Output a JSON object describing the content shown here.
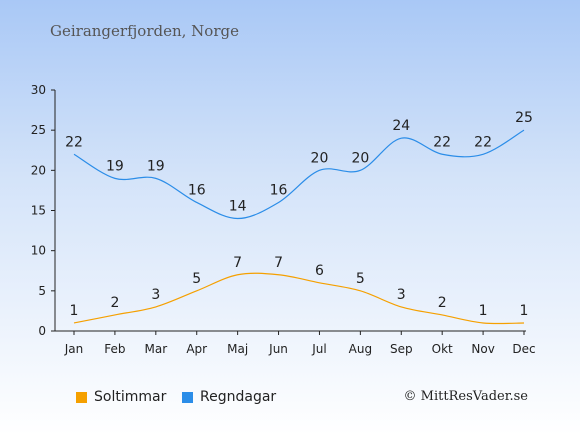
{
  "place_title": "Geirangerfjorden, Norge",
  "credit": "© MittResVader.se",
  "colors": {
    "sun": "#f5a000",
    "rain": "#2b8de8"
  },
  "chart_data": {
    "type": "line",
    "title": "Geirangerfjorden, Norge",
    "categories": [
      "Jan",
      "Feb",
      "Mar",
      "Apr",
      "Maj",
      "Jun",
      "Jul",
      "Aug",
      "Sep",
      "Okt",
      "Nov",
      "Dec"
    ],
    "ylim": [
      0,
      30
    ],
    "yticks": [
      0,
      5,
      10,
      15,
      20,
      25,
      30
    ],
    "legend_position": "bottom-left",
    "grid": false,
    "series": [
      {
        "name": "Soltimmar",
        "color": "#f5a000",
        "values": [
          1,
          2,
          3,
          5,
          7,
          7,
          6,
          5,
          3,
          2,
          1,
          1
        ]
      },
      {
        "name": "Regndagar",
        "color": "#2b8de8",
        "values": [
          22,
          19,
          19,
          16,
          14,
          16,
          20,
          20,
          24,
          22,
          22,
          25
        ]
      }
    ]
  }
}
